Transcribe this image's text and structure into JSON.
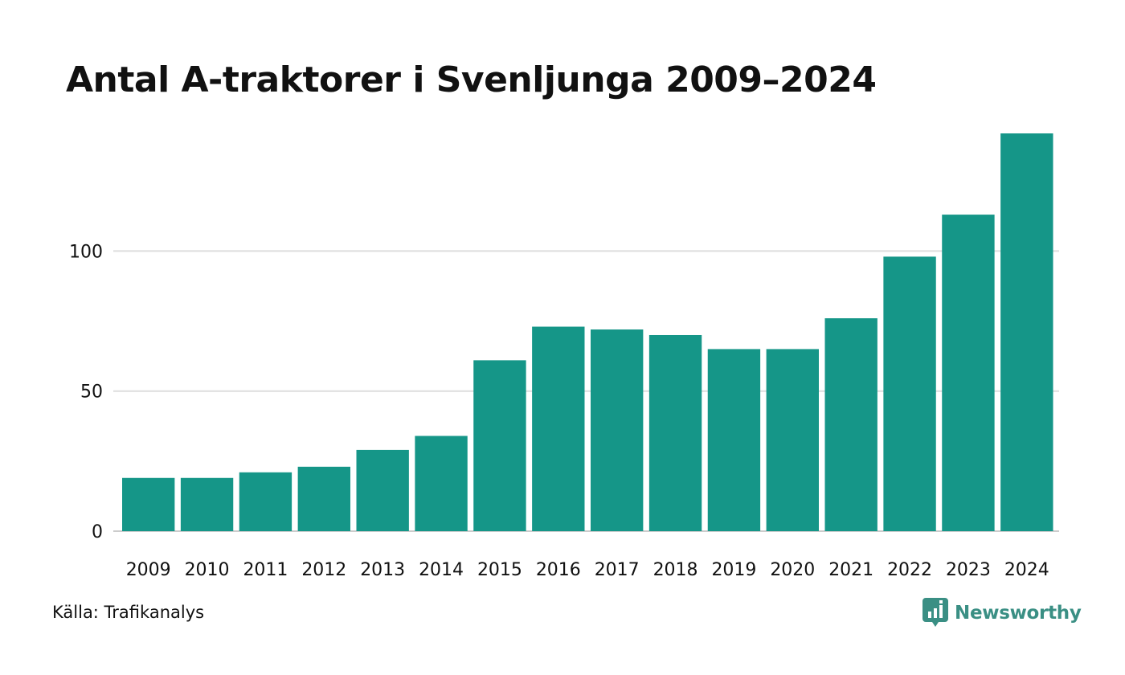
{
  "title": "Antal A-traktorer i Svenljunga 2009–2024",
  "source": "Källa: Trafikanalys",
  "brand": {
    "name": "Newsworthy",
    "color": "#3a8f84",
    "icon": "newsworthy-logo-icon"
  },
  "colors": {
    "bar": "#159688",
    "grid": "#dddddd",
    "baseline": "#cccccc"
  },
  "chart_data": {
    "type": "bar",
    "title": "Antal A-traktorer i Svenljunga 2009–2024",
    "xlabel": "",
    "ylabel": "",
    "categories": [
      "2009",
      "2010",
      "2011",
      "2012",
      "2013",
      "2014",
      "2015",
      "2016",
      "2017",
      "2018",
      "2019",
      "2020",
      "2021",
      "2022",
      "2023",
      "2024"
    ],
    "values": [
      19,
      19,
      21,
      23,
      29,
      34,
      61,
      73,
      72,
      70,
      65,
      65,
      76,
      98,
      113,
      142
    ],
    "ylim": [
      0,
      142
    ],
    "yticks": [
      0,
      50,
      100
    ],
    "ytick_labels": [
      "0",
      "50",
      "100"
    ],
    "grid": true,
    "legend": "none"
  }
}
